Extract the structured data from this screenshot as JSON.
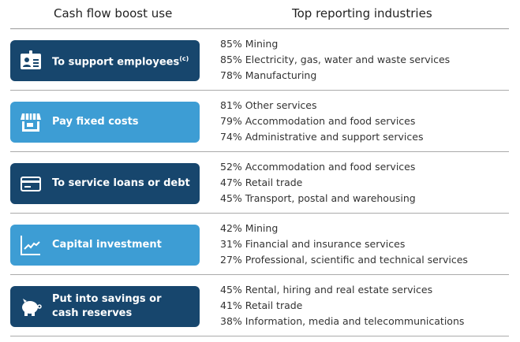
{
  "headers": {
    "left": "Cash flow boost use",
    "right": "Top reporting industries"
  },
  "colors": {
    "dark": "#17466d",
    "light": "#3d9dd4"
  },
  "rows": [
    {
      "label": "To support employees",
      "superscript": "(c)",
      "icon": "id-badge-icon",
      "style": "dark",
      "items": [
        "85% Mining",
        "85% Electricity, gas, water and waste services",
        "78% Manufacturing"
      ]
    },
    {
      "label": "Pay fixed costs",
      "icon": "storefront-icon",
      "style": "light",
      "items": [
        "81% Other services",
        "79% Accommodation and food services",
        "74% Administrative and support services"
      ]
    },
    {
      "label": "To service loans or debt",
      "icon": "credit-card-icon",
      "style": "dark",
      "items": [
        "52% Accommodation and food services",
        "47% Retail trade",
        "45% Transport, postal and warehousing"
      ]
    },
    {
      "label": "Capital investment",
      "icon": "line-chart-icon",
      "style": "light",
      "items": [
        "42% Mining",
        "31% Financial and insurance services",
        "27% Professional, scientific and technical services"
      ]
    },
    {
      "label": "Put into savings or cash reserves",
      "icon": "piggy-bank-icon",
      "style": "dark",
      "items": [
        "45% Rental, hiring and real estate services",
        "41% Retail trade",
        "38% Information, media and telecommunications"
      ]
    }
  ]
}
